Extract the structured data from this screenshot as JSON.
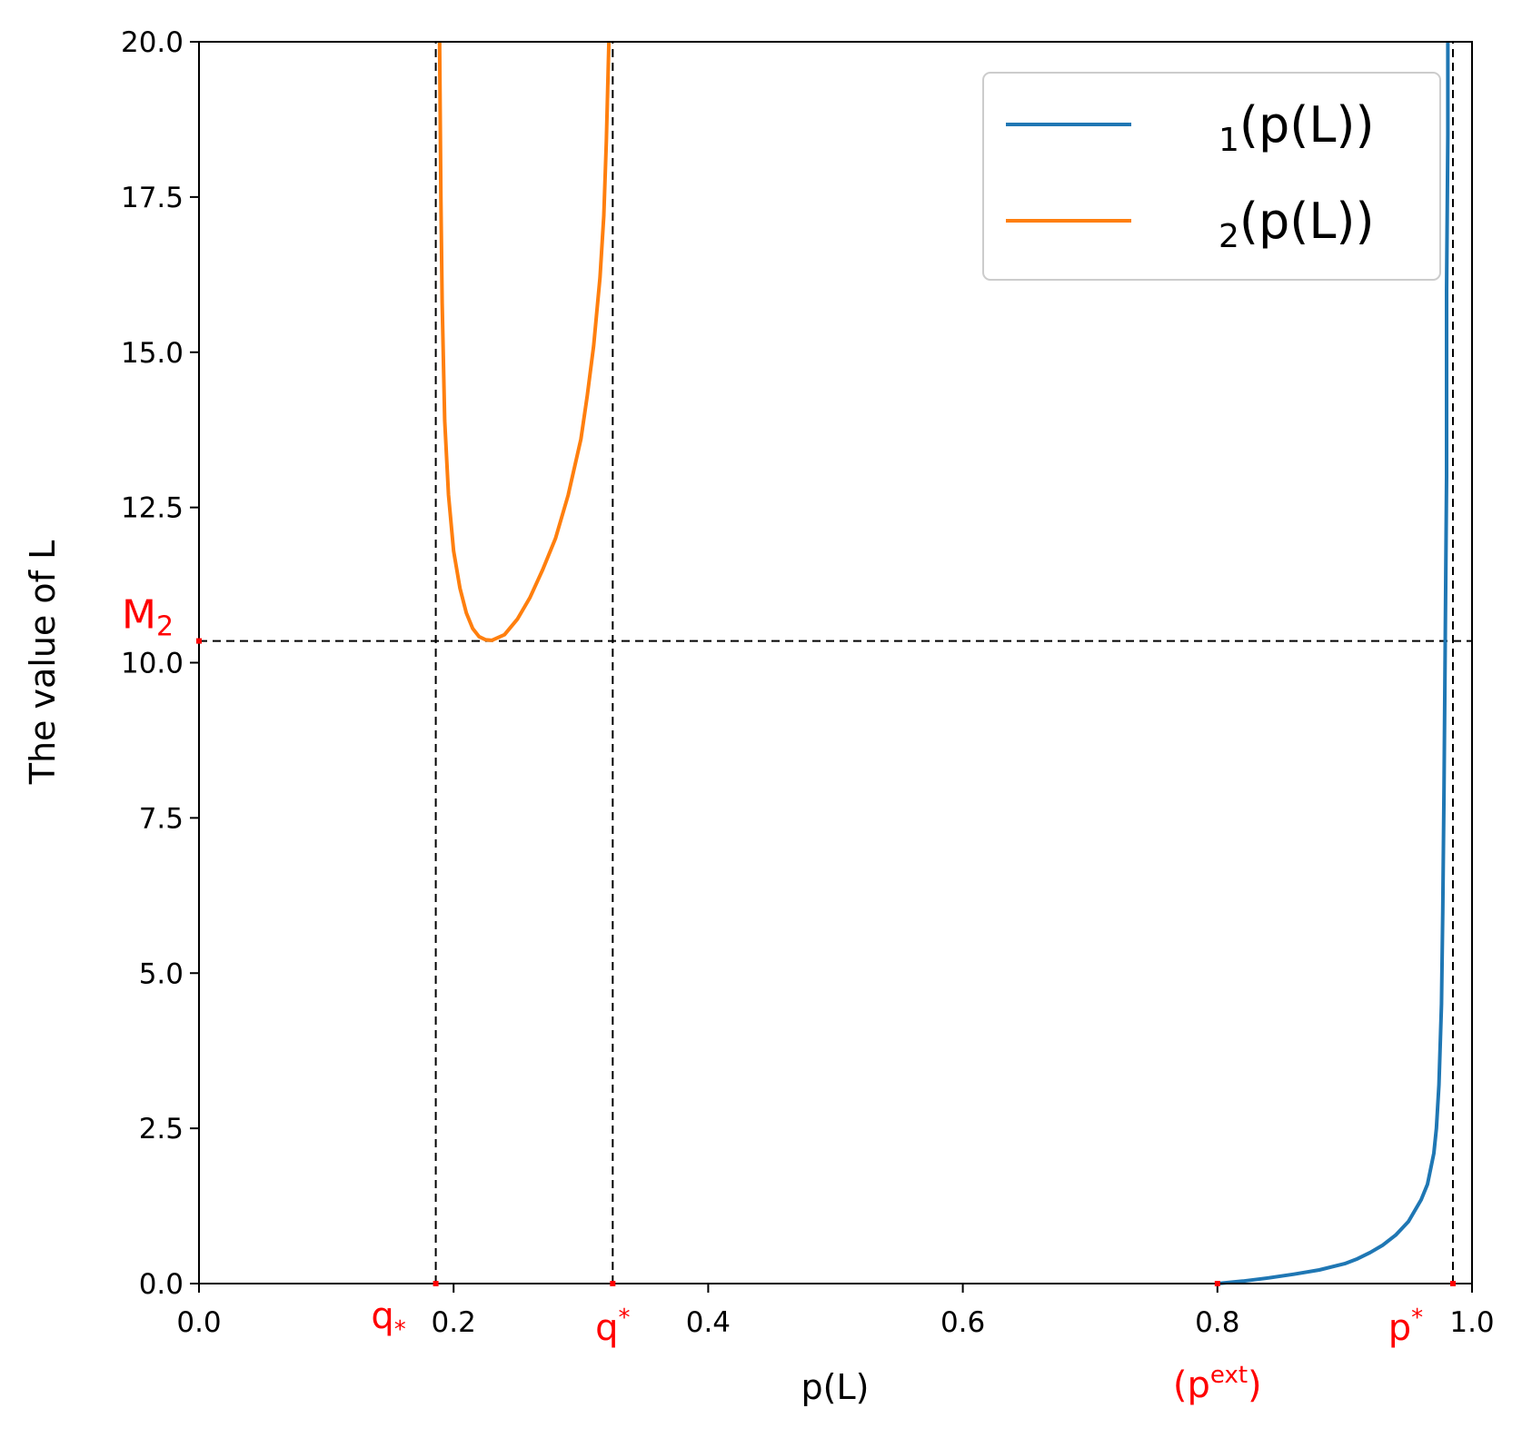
{
  "chart_data": {
    "type": "line",
    "title": "",
    "xlabel": "p(L)",
    "ylabel": "The value of L",
    "xlim": [
      0.0,
      1.0
    ],
    "ylim": [
      0.0,
      20.0
    ],
    "grid": false,
    "legend_placement": "top-right",
    "xticks": [
      0.0,
      0.2,
      0.4,
      0.6,
      0.8,
      1.0
    ],
    "xtick_labels": [
      "0.0",
      "0.2",
      "0.4",
      "0.6",
      "0.8",
      "1.0"
    ],
    "yticks": [
      0.0,
      2.5,
      5.0,
      7.5,
      10.0,
      12.5,
      15.0,
      17.5,
      20.0
    ],
    "ytick_labels": [
      "0.0",
      "2.5",
      "5.0",
      "7.5",
      "10.0",
      "12.5",
      "15.0",
      "17.5",
      "20.0"
    ],
    "series": [
      {
        "name": "₁(p(L))",
        "legend_main": "(p(L))",
        "legend_sub": "1",
        "color": "#1f77b4",
        "x": [
          0.8,
          0.82,
          0.84,
          0.86,
          0.88,
          0.9,
          0.91,
          0.92,
          0.93,
          0.94,
          0.95,
          0.96,
          0.965,
          0.97,
          0.972,
          0.974,
          0.976,
          0.977,
          0.978,
          0.979,
          0.98,
          0.98,
          0.981,
          0.981
        ],
        "y": [
          0.0,
          0.04,
          0.09,
          0.15,
          0.22,
          0.32,
          0.4,
          0.5,
          0.62,
          0.78,
          1.0,
          1.35,
          1.6,
          2.1,
          2.5,
          3.2,
          4.5,
          6.0,
          8.0,
          10.5,
          13.0,
          16.0,
          18.5,
          20.0
        ]
      },
      {
        "name": "₂(p(L))",
        "legend_main": "(p(L))",
        "legend_sub": "2",
        "color": "#ff7f0e",
        "x": [
          0.189,
          0.19,
          0.191,
          0.193,
          0.196,
          0.2,
          0.205,
          0.21,
          0.215,
          0.22,
          0.225,
          0.23,
          0.24,
          0.25,
          0.26,
          0.27,
          0.28,
          0.29,
          0.3,
          0.305,
          0.31,
          0.315,
          0.318,
          0.32,
          0.322
        ],
        "y": [
          20.0,
          17.5,
          15.8,
          13.9,
          12.7,
          11.8,
          11.2,
          10.8,
          10.55,
          10.42,
          10.37,
          10.36,
          10.45,
          10.7,
          11.05,
          11.5,
          12.0,
          12.7,
          13.6,
          14.3,
          15.1,
          16.2,
          17.2,
          18.4,
          20.0
        ]
      }
    ],
    "reference_lines": {
      "vertical": [
        0.186,
        0.325,
        0.985
      ],
      "horizontal": [
        10.35
      ],
      "color": "#000000",
      "style": "dashed"
    },
    "annotations": {
      "color": "#ff0000",
      "x_axis_marks": [
        {
          "x": 0.186,
          "main": "q",
          "sup": "",
          "sub": "*"
        },
        {
          "x": 0.325,
          "main": "q",
          "sup": "*",
          "sub": ""
        },
        {
          "x": 0.8,
          "main": "(p",
          "sup": "ext",
          "sub": "",
          "close": ")"
        },
        {
          "x": 0.985,
          "main": "p",
          "sup": "*",
          "sub": ""
        }
      ],
      "y_axis_marks": [
        {
          "y": 10.35,
          "main": "M",
          "sub": "2"
        }
      ]
    }
  }
}
